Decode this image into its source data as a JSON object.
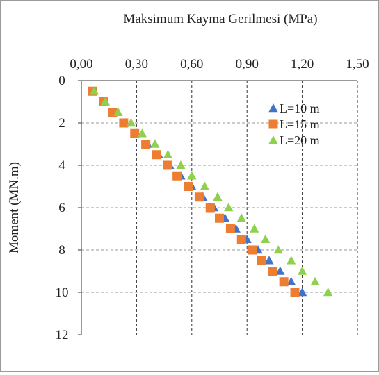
{
  "chart_data": {
    "type": "scatter",
    "title": "Maksimum Kayma Gerilmesi (MPa)",
    "xlabel": "Maksimum Kayma Gerilmesi (MPa)",
    "ylabel": "Moment (MN.m)",
    "x_axis_position": "top",
    "y_axis_inverted": true,
    "xlim": [
      0,
      1.5
    ],
    "ylim": [
      0,
      12
    ],
    "x_ticks": [
      "0,00",
      "0,30",
      "0,60",
      "0,90",
      "1,20",
      "1,50"
    ],
    "y_ticks": [
      "0",
      "2",
      "4",
      "6",
      "8",
      "10",
      "12"
    ],
    "grid": {
      "vertical": "dashed-black",
      "horizontal": "dashed-gray"
    },
    "legend_position": "top-right",
    "series": [
      {
        "name": "L=10 m",
        "marker": "triangle",
        "color": "#4472C4",
        "points": [
          [
            0.06,
            0.5
          ],
          [
            0.12,
            1.0
          ],
          [
            0.18,
            1.5
          ],
          [
            0.24,
            2.0
          ],
          [
            0.3,
            2.5
          ],
          [
            0.36,
            3.0
          ],
          [
            0.42,
            3.5
          ],
          [
            0.48,
            4.0
          ],
          [
            0.54,
            4.5
          ],
          [
            0.6,
            5.0
          ],
          [
            0.66,
            5.5
          ],
          [
            0.72,
            6.0
          ],
          [
            0.78,
            6.5
          ],
          [
            0.84,
            7.0
          ],
          [
            0.9,
            7.5
          ],
          [
            0.96,
            8.0
          ],
          [
            1.02,
            8.5
          ],
          [
            1.08,
            9.0
          ],
          [
            1.14,
            9.5
          ],
          [
            1.2,
            10.0
          ]
        ]
      },
      {
        "name": "L=15 m",
        "marker": "square",
        "color": "#ED7D31",
        "points": [
          [
            0.06,
            0.5
          ],
          [
            0.12,
            1.0
          ],
          [
            0.17,
            1.5
          ],
          [
            0.23,
            2.0
          ],
          [
            0.29,
            2.5
          ],
          [
            0.35,
            3.0
          ],
          [
            0.41,
            3.5
          ],
          [
            0.47,
            4.0
          ],
          [
            0.52,
            4.5
          ],
          [
            0.58,
            5.0
          ],
          [
            0.64,
            5.5
          ],
          [
            0.7,
            6.0
          ],
          [
            0.75,
            6.5
          ],
          [
            0.81,
            7.0
          ],
          [
            0.87,
            7.5
          ],
          [
            0.93,
            8.0
          ],
          [
            0.98,
            8.5
          ],
          [
            1.04,
            9.0
          ],
          [
            1.1,
            9.5
          ],
          [
            1.16,
            10.0
          ]
        ]
      },
      {
        "name": "L=20 m",
        "marker": "triangle",
        "color": "#8FD14F",
        "points": [
          [
            0.07,
            0.5
          ],
          [
            0.13,
            1.0
          ],
          [
            0.2,
            1.5
          ],
          [
            0.27,
            2.0
          ],
          [
            0.33,
            2.5
          ],
          [
            0.4,
            3.0
          ],
          [
            0.47,
            3.5
          ],
          [
            0.54,
            4.0
          ],
          [
            0.6,
            4.5
          ],
          [
            0.67,
            5.0
          ],
          [
            0.74,
            5.5
          ],
          [
            0.8,
            6.0
          ],
          [
            0.87,
            6.5
          ],
          [
            0.94,
            7.0
          ],
          [
            1.0,
            7.5
          ],
          [
            1.07,
            8.0
          ],
          [
            1.14,
            8.5
          ],
          [
            1.2,
            9.0
          ],
          [
            1.27,
            9.5
          ],
          [
            1.34,
            10.0
          ]
        ]
      }
    ]
  }
}
